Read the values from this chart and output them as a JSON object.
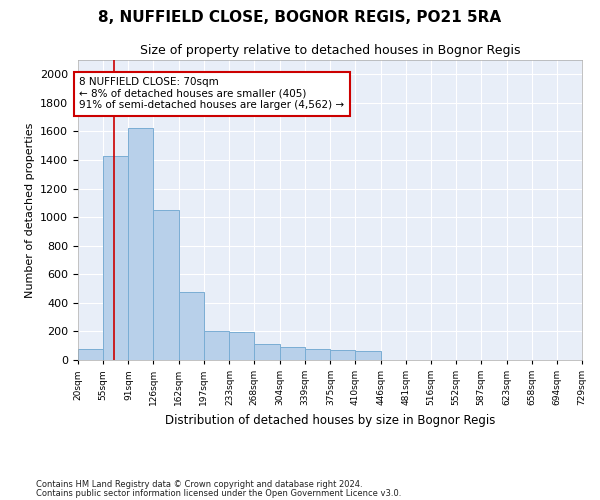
{
  "title": "8, NUFFIELD CLOSE, BOGNOR REGIS, PO21 5RA",
  "subtitle": "Size of property relative to detached houses in Bognor Regis",
  "xlabel": "Distribution of detached houses by size in Bognor Regis",
  "ylabel": "Number of detached properties",
  "bar_color": "#b8d0ea",
  "bar_edge_color": "#7aadd4",
  "bg_color": "#e8eef8",
  "grid_color": "#ffffff",
  "annotation_box_color": "#cc0000",
  "annotation_line1": "8 NUFFIELD CLOSE: 70sqm",
  "annotation_line2": "← 8% of detached houses are smaller (405)",
  "annotation_line3": "91% of semi-detached houses are larger (4,562) →",
  "vline_x": 70,
  "vline_color": "#cc0000",
  "bins": [
    20,
    55,
    91,
    126,
    162,
    197,
    233,
    268,
    304,
    339,
    375,
    410,
    446,
    481,
    516,
    552,
    587,
    623,
    658,
    694,
    729
  ],
  "bar_heights": [
    75,
    1425,
    1625,
    1050,
    475,
    200,
    195,
    115,
    90,
    75,
    70,
    65,
    0,
    0,
    0,
    0,
    0,
    0,
    0,
    0
  ],
  "ylim": [
    0,
    2100
  ],
  "yticks": [
    0,
    200,
    400,
    600,
    800,
    1000,
    1200,
    1400,
    1600,
    1800,
    2000
  ],
  "footnote1": "Contains HM Land Registry data © Crown copyright and database right 2024.",
  "footnote2": "Contains public sector information licensed under the Open Government Licence v3.0."
}
